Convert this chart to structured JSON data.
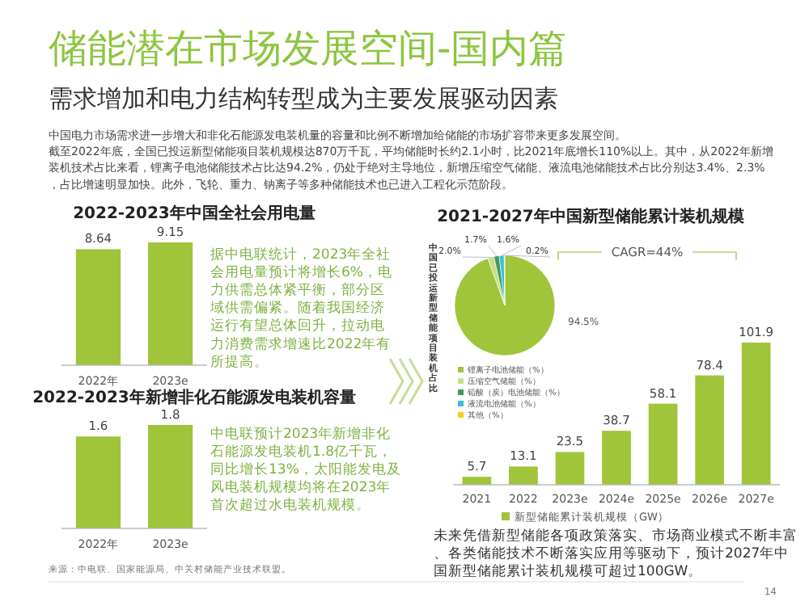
{
  "chart_data": [
    {
      "type": "other",
      "title": "储能潜在市场发展空间-国内篇",
      "subtitle": "需求增加和电力结构转型成为主要发展驱动因素",
      "annotations": [
        "中国电力市场需求进一步增大和非化石能源发电装机量的容量和比例不断增加给储能的市场扩容带来更多发展空间。",
        "截至2022年底，全国已投运新型储能项目装机规模达870万千瓦，平均储能时长约2.1小时，比2021年底增长110%以上。其中，从2022年新增装机技术占比来看，锂离子电池储能技术占比达94.2%，仍处于绝对主导地位，新增压缩空气储能、液流电池储能技术占比分别达3.4%、2.3%，占比增速明显加快。此外，飞轮、重力、钠离子等多种储能技术也已进入工程化示范阶段。",
        "来源：中电联、国家能源局、中关村储能产业技术联盟。",
        "14"
      ]
    },
    {
      "type": "bar",
      "title": "2022-2023年中国全社会用电量",
      "categories": [
        "2022年",
        "2023e"
      ],
      "values": [
        8.64,
        9.15
      ],
      "color": "#a0c43a",
      "data_labels": true,
      "annotations": [
        "据中电联统计，2023年全社会用电量预计将增长6%，电力供需总体紧平衡，部分区域供需偏紧。随着我国经济运行有望总体回升，拉动电力消费需求增速比2022年有所提高。"
      ]
    },
    {
      "type": "bar",
      "title": "2022-2023年新增非化石能源发电装机容量",
      "categories": [
        "2022年",
        "2023e"
      ],
      "values": [
        1.6,
        1.8
      ],
      "color": "#a0c43a",
      "data_labels": true,
      "annotations": [
        "中电联预计2023年新增非化石能源发电装机1.8亿千瓦，同比增长13%，太阳能发电及风电装机规模均将在2023年首次超过水电装机规模。"
      ]
    },
    {
      "type": "pie",
      "title": "2021-2027年中国新型储能累计装机规模",
      "ylabel": "中国已投运新型储能项目装机占比",
      "categories": [
        "锂离子电池储能（%）",
        "压缩空气储能（%）",
        "铅酸（炭）电池储能（%）",
        "液流电池储能（%）",
        "其他（%）"
      ],
      "values": [
        94.5,
        2.0,
        1.7,
        1.6,
        0.2
      ],
      "value_labels": [
        "94.5%",
        "2.0%",
        "1.7%",
        "1.6%",
        "0.2%"
      ],
      "colors": [
        "#a0c43a",
        "#c9de8c",
        "#3f9b5c",
        "#3bbfd9",
        "#f2d21b"
      ],
      "legend": "bottom"
    },
    {
      "type": "bar",
      "categories": [
        "2021",
        "2022",
        "2023e",
        "2024e",
        "2025e",
        "2026e",
        "2027e"
      ],
      "series": [
        {
          "name": "新型储能累计装机规模（GW）",
          "color": "#a0c43a",
          "values": [
            5.7,
            13.1,
            23.5,
            38.7,
            58.1,
            78.4,
            101.9
          ]
        }
      ],
      "data_labels": true,
      "legend": "bottom",
      "annotations": [
        "CAGR=44%",
        "未来凭借新型储能各项政策落实、市场商业模式不断丰富、各类储能技术不断落实应用等驱动下，预计2027年中国新型储能累计装机规模可超过100GW。"
      ]
    }
  ]
}
